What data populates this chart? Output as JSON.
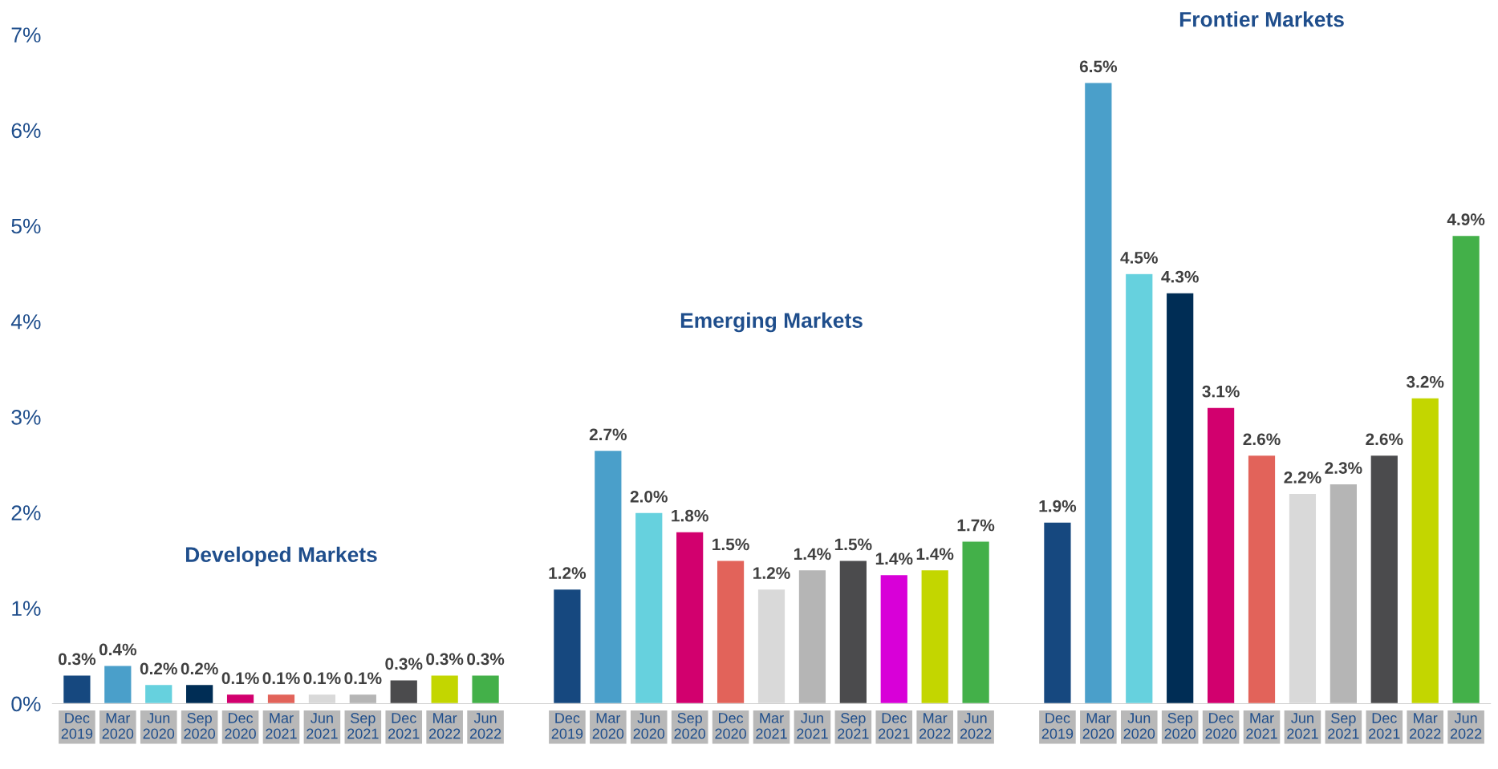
{
  "chart_data": {
    "type": "bar",
    "categories": [
      "Dec\n2019",
      "Mar\n2020",
      "Jun\n2020",
      "Sep\n2020",
      "Dec\n2020",
      "Mar\n2021",
      "Jun\n2021",
      "Sep\n2021",
      "Dec\n2021",
      "Mar\n2022",
      "Jun\n2022",
      null,
      "Dec\n2019",
      "Mar\n2020",
      "Jun\n2020",
      "Sep\n2020",
      "Dec\n2020",
      "Mar\n2021",
      "Jun\n2021",
      "Sep\n2021",
      "Dec\n2021",
      "Mar\n2022",
      "Jun\n2022",
      null,
      "Dec\n2019",
      "Mar\n2020",
      "Jun\n2020",
      "Sep\n2020",
      "Dec\n2020",
      "Mar\n2021",
      "Jun\n2021",
      "Sep\n2021",
      "Dec\n2021",
      "Mar\n2022",
      "Jun\n2022"
    ],
    "values": [
      0.3,
      0.4,
      0.2,
      0.2,
      0.1,
      0.1,
      0.1,
      0.1,
      0.25,
      0.3,
      0.3,
      null,
      1.2,
      2.65,
      2.0,
      1.8,
      1.5,
      1.2,
      1.4,
      1.5,
      1.35,
      1.4,
      1.7,
      null,
      1.9,
      6.5,
      4.5,
      4.3,
      3.1,
      2.6,
      2.2,
      2.3,
      2.6,
      3.2,
      4.9
    ],
    "value_labels": [
      "0.3%",
      "0.4%",
      "0.2%",
      "0.2%",
      "0.1%",
      "0.1%",
      "0.1%",
      "0.1%",
      "0.3%",
      "0.3%",
      "0.3%",
      null,
      "1.2%",
      "2.7%",
      "2.0%",
      "1.8%",
      "1.5%",
      "1.2%",
      "1.4%",
      "1.5%",
      "1.4%",
      "1.4%",
      "1.7%",
      null,
      "1.9%",
      "6.5%",
      "4.5%",
      "4.3%",
      "3.1%",
      "2.6%",
      "2.2%",
      "2.3%",
      "2.6%",
      "3.2%",
      "4.9%"
    ],
    "colors": [
      "#16487f",
      "#4a9fca",
      "#66d1de",
      "#002d55",
      "#d2006e",
      "#e2635a",
      "#d9d9d9",
      "#b5b5b5",
      "#4b4b4d",
      "#c3d600",
      "#43b049",
      null,
      "#16487f",
      "#4a9fca",
      "#66d1de",
      "#d2006e",
      "#e2635a",
      "#d9d9d9",
      "#b5b5b5",
      "#4b4b4d",
      "#d800d8",
      "#c3d600",
      "#43b049",
      null,
      "#16487f",
      "#4a9fca",
      "#66d1de",
      "#002d55",
      "#d2006e",
      "#e2635a",
      "#d9d9d9",
      "#b5b5b5",
      "#4b4b4d",
      "#c3d600",
      "#43b049"
    ],
    "annotations": [
      "Developed Markets",
      "Emerging Markets",
      "Frontier Markets"
    ],
    "ylim": [
      0,
      7
    ],
    "yticks": [
      {
        "value": 0,
        "label": "0%"
      },
      {
        "value": 1,
        "label": "1%"
      },
      {
        "value": 2,
        "label": "2%"
      },
      {
        "value": 3,
        "label": "3%"
      },
      {
        "value": 4,
        "label": "4%"
      },
      {
        "value": 5,
        "label": "5%"
      },
      {
        "value": 6,
        "label": "6%"
      },
      {
        "value": 7,
        "label": "7%"
      }
    ],
    "grid": false
  }
}
